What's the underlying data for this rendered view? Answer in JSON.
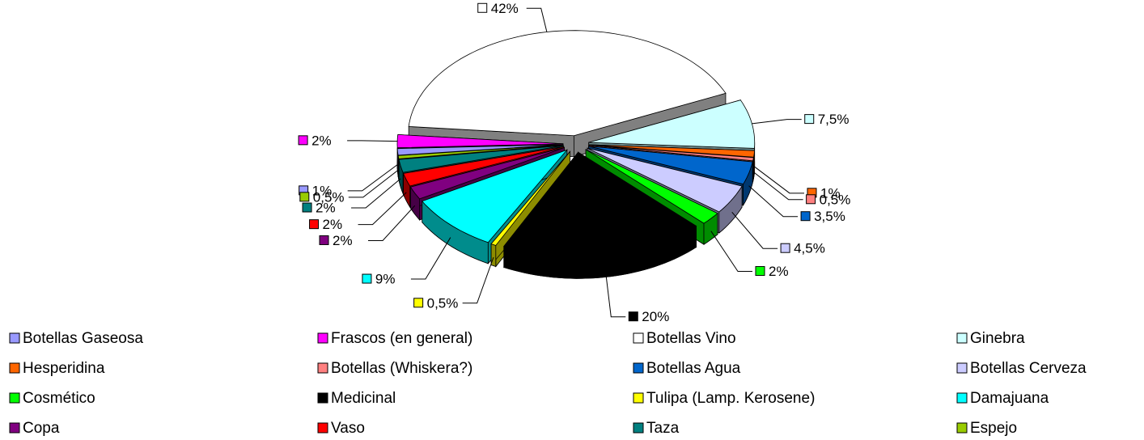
{
  "chart_data": {
    "type": "pie3d",
    "categories": [
      "Botellas Gaseosa",
      "Frascos (en general)",
      "Botellas Vino",
      "Ginebra",
      "Hesperidina",
      "Botellas (Whiskera?)",
      "Botellas Agua",
      "Botellas Cerveza",
      "Cosmético",
      "Medicinal",
      "Tulipa (Lamp. Kerosene)",
      "Damajuana",
      "Copa",
      "Vaso",
      "Taza",
      "Espejo"
    ],
    "values": [
      1,
      2,
      42,
      7.5,
      1,
      0.5,
      3.5,
      4.5,
      2,
      20,
      0.5,
      9,
      2,
      2,
      2,
      0.5
    ],
    "value_labels": [
      "1%",
      "2%",
      "42%",
      "7,5%",
      "1%",
      "0,5%",
      "3,5%",
      "4,5%",
      "2%",
      "20%",
      "0,5%",
      "9%",
      "2%",
      "2%",
      "2%",
      "0,5%"
    ],
    "colors": [
      "#9999ff",
      "#ff00ff",
      "#ffffff",
      "#ccffff",
      "#ff6600",
      "#ff8080",
      "#0066cc",
      "#ccccff",
      "#00ff00",
      "#000000",
      "#ffff00",
      "#00ffff",
      "#800080",
      "#ff0000",
      "#008080",
      "#99cc00"
    ],
    "legend": "bottom"
  }
}
